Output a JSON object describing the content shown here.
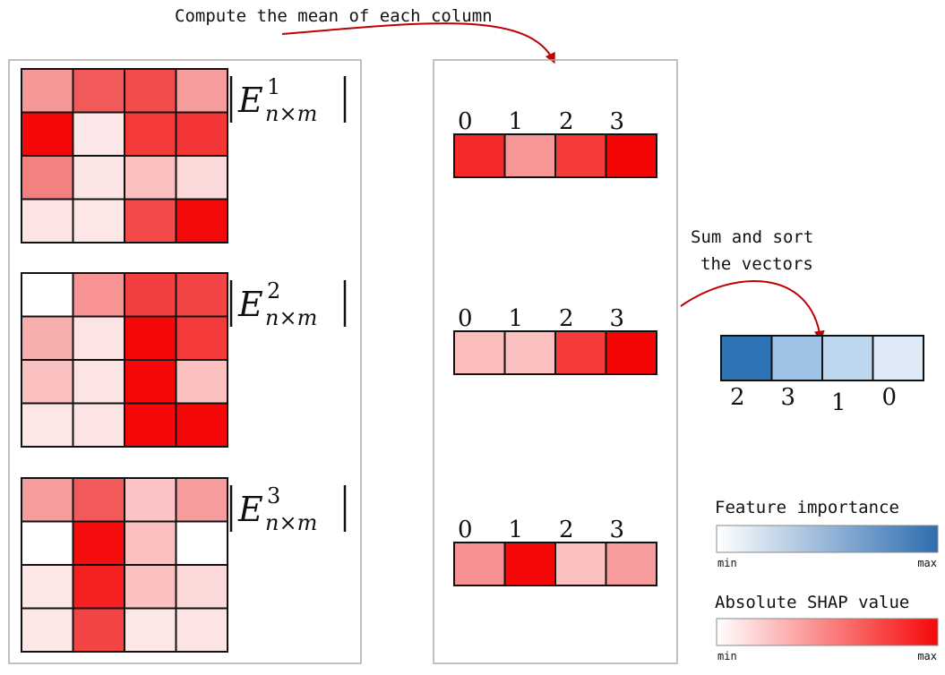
{
  "top_caption": "Compute the mean of each column",
  "sort_caption": [
    "Sum and sort",
    "the vectors"
  ],
  "matrices": [
    {
      "label": {
        "letter": "E",
        "sup": "1",
        "sub": "n×m"
      },
      "colors": [
        [
          "#f79898",
          "#f25a5a",
          "#f24c4c",
          "#f79c9c"
        ],
        [
          "#f50808",
          "#fce8e8",
          "#f53a3a",
          "#f53636"
        ],
        [
          "#f48080",
          "#fce5e5",
          "#fbc0c0",
          "#fcd8d8"
        ],
        [
          "#fde4e4",
          "#fde6e6",
          "#f24a4a",
          "#f50a0a"
        ]
      ]
    },
    {
      "label": {
        "letter": "E",
        "sup": "2",
        "sub": "n×m"
      },
      "colors": [
        [
          "#ffffff",
          "#f79393",
          "#f33f3f",
          "#f34545"
        ],
        [
          "#f9aeae",
          "#fde4e4",
          "#f50808",
          "#f53a3a"
        ],
        [
          "#fbc0c0",
          "#fde4e4",
          "#f50808",
          "#fbc0c0"
        ],
        [
          "#fde6e6",
          "#fde4e4",
          "#f50808",
          "#f50808"
        ]
      ]
    },
    {
      "label": {
        "letter": "E",
        "sup": "3",
        "sub": "n×m"
      },
      "colors": [
        [
          "#f79c9c",
          "#f25a5a",
          "#fbc3c3",
          "#f79c9c"
        ],
        [
          "#ffffff",
          "#f50c0c",
          "#fbc0c0",
          "#ffffff"
        ],
        [
          "#fde6e6",
          "#f52020",
          "#fbc0c0",
          "#fcd8d8"
        ],
        [
          "#fde8e8",
          "#f34545",
          "#fde6e6",
          "#fde4e4"
        ]
      ]
    }
  ],
  "mean_vectors": [
    {
      "indices": [
        "0",
        "1",
        "2",
        "3"
      ],
      "colors": [
        "#f52a2a",
        "#f79696",
        "#f53a3a",
        "#f50606"
      ]
    },
    {
      "indices": [
        "0",
        "1",
        "2",
        "3"
      ],
      "colors": [
        "#fbbcbc",
        "#fbc0c0",
        "#f53a3a",
        "#f50606"
      ]
    },
    {
      "indices": [
        "0",
        "1",
        "2",
        "3"
      ],
      "colors": [
        "#f79090",
        "#f50808",
        "#fbc0c0",
        "#f79c9c"
      ]
    }
  ],
  "sorted_vector": {
    "indices": [
      "2",
      "3",
      "1",
      "0"
    ],
    "colors": [
      "#2e74b5",
      "#9dc3e6",
      "#bdd7ee",
      "#deebf7"
    ]
  },
  "legends": {
    "feature_importance": {
      "title": "Feature importance",
      "min": "min",
      "max": "max",
      "from": "#ffffff",
      "to": "#2e6db0"
    },
    "shap": {
      "title": "Absolute SHAP value",
      "min": "min",
      "max": "max",
      "from": "#ffffff",
      "to": "#f50808"
    }
  },
  "accent_arrow_color": "#c00000"
}
